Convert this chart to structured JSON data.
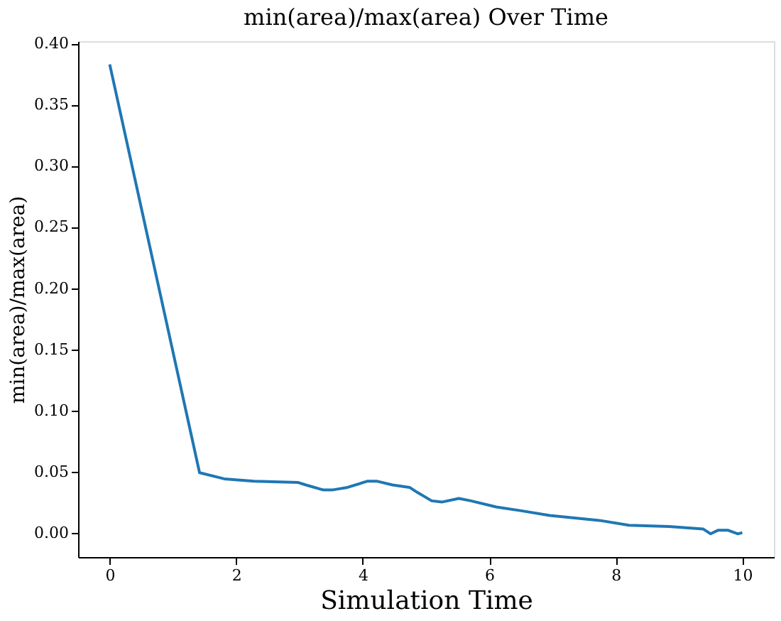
{
  "chart_data": {
    "type": "line",
    "title": "min(area)/max(area) Over Time",
    "xlabel": "Simulation Time",
    "ylabel": "min(area)/max(area)",
    "x": [
      0,
      1.42,
      1.81,
      2.28,
      2.98,
      3.1,
      3.37,
      3.53,
      3.76,
      4.07,
      4.23,
      4.47,
      4.74,
      4.86,
      5.09,
      5.25,
      5.52,
      5.71,
      6.11,
      6.49,
      6.96,
      7.74,
      8.21,
      8.84,
      9.38,
      9.5,
      9.62,
      9.77,
      9.93,
      10
    ],
    "series": [
      {
        "color": "#1f77b4",
        "values": [
          0.383,
          0.049,
          0.044,
          0.042,
          0.041,
          0.039,
          0.035,
          0.035,
          0.037,
          0.042,
          0.042,
          0.039,
          0.037,
          0.033,
          0.026,
          0.025,
          0.028,
          0.026,
          0.021,
          0.018,
          0.014,
          0.01,
          0.006,
          0.005,
          0.003,
          -0.001,
          0.002,
          0.002,
          -0.001,
          0.0
        ]
      }
    ],
    "xlim": [
      -0.5,
      10.5
    ],
    "ylim": [
      -0.02,
      0.402
    ],
    "xticks": [
      0,
      2,
      4,
      6,
      8,
      10
    ],
    "yticks": [
      {
        "value": 0,
        "label": "0.00"
      },
      0.05,
      {
        "value": 0.1,
        "label": "0.10"
      },
      0.15,
      {
        "value": 0.2,
        "label": "0.20"
      },
      0.25,
      {
        "value": 0.3,
        "label": "0.30"
      },
      0.35,
      {
        "value": 0.4,
        "label": "0.40"
      }
    ],
    "grid": false,
    "legend": false,
    "marker": "none",
    "line_style": "solid"
  }
}
